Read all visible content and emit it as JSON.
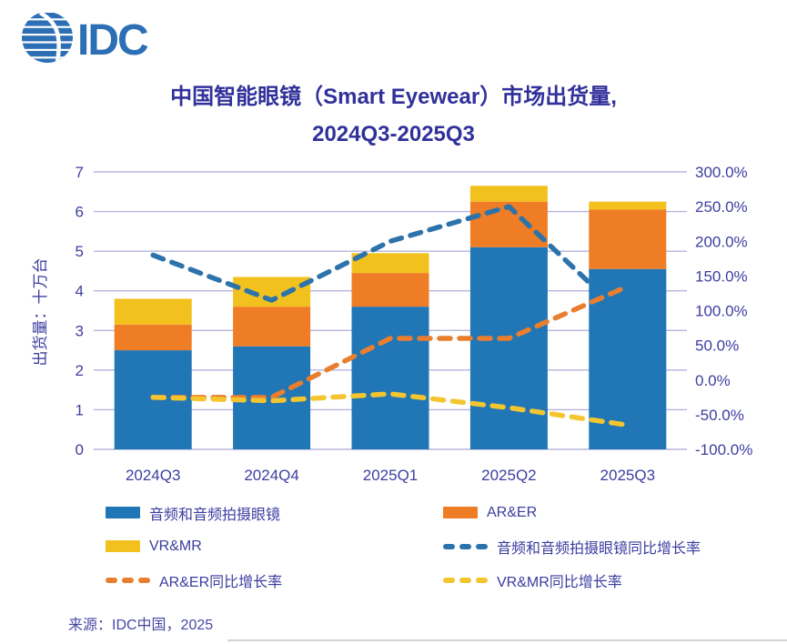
{
  "logo": {
    "text": "IDC",
    "color": "#2D6FB5"
  },
  "title": {
    "line1": "中国智能眼镜（Smart Eyewear）市场出货量,",
    "line2": "2024Q3-2025Q3"
  },
  "source": "来源：IDC中国，2025",
  "ui_colors": {
    "title_text": "#31319B",
    "axis_text": "#3E3EA0",
    "legend_text": "#3C3CA0",
    "source_text": "#4747A5",
    "gridline": "#B5B5DE",
    "background": "#FFFFFF"
  },
  "chart_data": {
    "type": "combo-stacked-bar-line",
    "categories": [
      "2024Q3",
      "2024Q4",
      "2025Q1",
      "2025Q2",
      "2025Q3"
    ],
    "bar_series": [
      {
        "key": "audio-camera-glasses",
        "name": "音频和音频拍摄眼镜",
        "color": "#2176B5",
        "values": [
          2.5,
          2.6,
          3.6,
          5.1,
          4.55
        ]
      },
      {
        "key": "ar-er",
        "name": "AR&ER",
        "color": "#EF7D25",
        "values": [
          0.65,
          1.0,
          0.85,
          1.15,
          1.5
        ]
      },
      {
        "key": "vr-mr",
        "name": "VR&MR",
        "color": "#F3C11E",
        "values": [
          0.65,
          0.75,
          0.5,
          0.4,
          0.2
        ]
      }
    ],
    "line_series": [
      {
        "key": "audio-camera-glasses-growth",
        "name": "音频和音频拍摄眼镜同比增长率",
        "color": "#2C73AC",
        "values_pct": [
          180,
          115,
          200,
          250,
          140
        ]
      },
      {
        "key": "ar-er-growth",
        "name": "AR&ER同比增长率",
        "color": "#E97E2E",
        "values_pct": [
          -25,
          -25,
          60,
          60,
          135
        ]
      },
      {
        "key": "vr-mr-growth",
        "name": "VR&MR同比增长率",
        "color": "#F3C52F",
        "values_pct": [
          -25,
          -30,
          -20,
          -40,
          -65
        ]
      }
    ],
    "left_axis": {
      "title": "出货量：十万台",
      "ticks": [
        "0",
        "1",
        "2",
        "3",
        "4",
        "5",
        "6",
        "7"
      ],
      "range": [
        0,
        7
      ]
    },
    "right_axis": {
      "ticks": [
        "300.0%",
        "250.0%",
        "200.0%",
        "150.0%",
        "100.0%",
        "50.0%",
        "0.0%",
        "-50.0%",
        "-100.0%"
      ],
      "range_pct": [
        300,
        -100
      ]
    },
    "grid": true,
    "legend_position": "bottom",
    "legend": [
      {
        "key": "audio-camera-glasses",
        "label": "音频和音频拍摄眼镜",
        "swatch": "rect",
        "color": "#2176B5"
      },
      {
        "key": "ar-er",
        "label": "AR&ER",
        "swatch": "rect",
        "color": "#EF7D25"
      },
      {
        "key": "vr-mr",
        "label": "VR&MR",
        "swatch": "rect",
        "color": "#F3C11E"
      },
      {
        "key": "audio-camera-glasses-growth",
        "label": "音频和音频拍摄眼镜同比增长率",
        "swatch": "dashes",
        "color": "#2C73AC"
      },
      {
        "key": "ar-er-growth",
        "label": "AR&ER同比增长率",
        "swatch": "dashes",
        "color": "#E97E2E"
      },
      {
        "key": "vr-mr-growth",
        "label": "VR&MR同比增长率",
        "swatch": "dashes",
        "color": "#F3C52F"
      }
    ]
  }
}
